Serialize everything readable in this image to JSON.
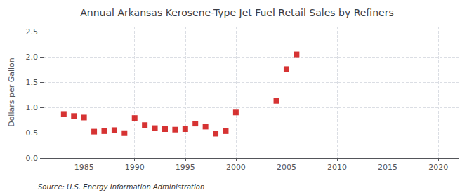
{
  "chart_data": {
    "type": "scatter",
    "title": "Annual Arkansas Kerosene-Type Jet Fuel Retail Sales by Refiners",
    "ylabel": "Dollars per Gallon",
    "annotations": [
      "Source: U.S. Energy Information Administration"
    ],
    "x": [
      1983,
      1984,
      1985,
      1986,
      1987,
      1988,
      1989,
      1990,
      1991,
      1992,
      1993,
      1994,
      1995,
      1996,
      1997,
      1998,
      1999,
      2000,
      2004,
      2005,
      2006
    ],
    "values": [
      0.87,
      0.83,
      0.8,
      0.52,
      0.53,
      0.55,
      0.49,
      0.79,
      0.65,
      0.59,
      0.57,
      0.56,
      0.57,
      0.68,
      0.62,
      0.48,
      0.53,
      0.9,
      1.13,
      1.76,
      2.05
    ],
    "color": "#cc0000",
    "marker": "square",
    "xlim": [
      1981,
      2022
    ],
    "ylim": [
      0.0,
      2.6
    ],
    "xticks": [
      1985,
      1990,
      1995,
      2000,
      2005,
      2010,
      2015,
      2020
    ],
    "yticks": [
      {
        "value": 0,
        "label": "0.0"
      },
      0.5,
      {
        "value": 1,
        "label": "1.0"
      },
      1.5,
      {
        "value": 2,
        "label": "2.0"
      },
      2.5
    ],
    "grid": true
  }
}
